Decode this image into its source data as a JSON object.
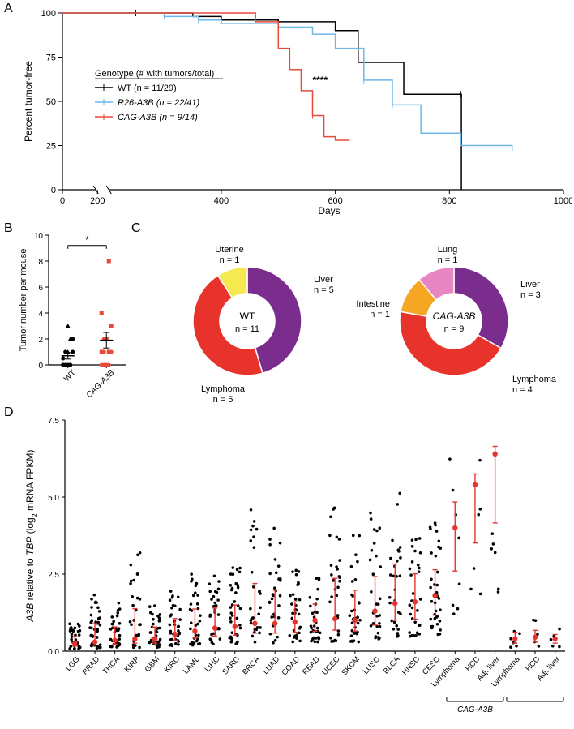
{
  "labels": {
    "A": "A",
    "B": "B",
    "C": "C",
    "D": "D"
  },
  "panelA": {
    "y_title": "Percent tumor-free",
    "x_title": "Days",
    "legend_header": "Genotype (# with tumors/total)",
    "series": [
      {
        "name": "WT",
        "label": "WT (n = 11/29)",
        "color": "#000000",
        "pts": [
          [
            0,
            100
          ],
          [
            250,
            100
          ],
          [
            300,
            100
          ],
          [
            350,
            98
          ],
          [
            400,
            96
          ],
          [
            500,
            95
          ],
          [
            600,
            90
          ],
          [
            640,
            72
          ],
          [
            700,
            72
          ],
          [
            720,
            54
          ],
          [
            820,
            54
          ],
          [
            821,
            0
          ]
        ]
      },
      {
        "name": "R26-A3B",
        "label": "R26-A3B (n = 22/41)",
        "color": "#6bb7e8",
        "italic": true,
        "pts": [
          [
            0,
            100
          ],
          [
            250,
            100
          ],
          [
            300,
            98
          ],
          [
            360,
            96
          ],
          [
            400,
            94
          ],
          [
            500,
            92
          ],
          [
            560,
            88
          ],
          [
            600,
            80
          ],
          [
            650,
            62
          ],
          [
            700,
            48
          ],
          [
            750,
            32
          ],
          [
            820,
            25
          ],
          [
            910,
            22
          ]
        ]
      },
      {
        "name": "CAG-A3B",
        "label": "CAG-A3B (n = 9/14)",
        "color": "#e84a3a",
        "italic": true,
        "pts": [
          [
            0,
            100
          ],
          [
            250,
            100
          ],
          [
            460,
            95
          ],
          [
            500,
            80
          ],
          [
            520,
            68
          ],
          [
            540,
            56
          ],
          [
            560,
            42
          ],
          [
            580,
            30
          ],
          [
            600,
            28
          ],
          [
            625,
            28
          ]
        ]
      }
    ],
    "signif": "****",
    "xticks": [
      0,
      200,
      400,
      600,
      800,
      1000
    ],
    "yticks": [
      0,
      25,
      50,
      75,
      100
    ]
  },
  "panelB": {
    "y_title": "Tumor number per mouse",
    "categories": [
      "WT",
      "CAG-A3B"
    ],
    "signif": "*",
    "ymax": 10,
    "ytick_step": 2,
    "group_means": [
      0.7,
      1.9
    ],
    "group_sems": [
      0.25,
      0.6
    ],
    "points": {
      "WT": [
        {
          "y": 0.5,
          "s": "c"
        },
        {
          "y": 1,
          "s": "c"
        },
        {
          "y": 0,
          "s": "c"
        },
        {
          "y": 2,
          "s": "t"
        },
        {
          "y": 1,
          "s": "c"
        },
        {
          "y": 0,
          "s": "c"
        },
        {
          "y": 0,
          "s": "c"
        },
        {
          "y": 1,
          "s": "t"
        },
        {
          "y": 0,
          "s": "c"
        },
        {
          "y": 2,
          "s": "c"
        },
        {
          "y": 0,
          "s": "c"
        },
        {
          "y": 1,
          "s": "c"
        },
        {
          "y": 3,
          "s": "t"
        },
        {
          "y": 0,
          "s": "c"
        }
      ],
      "CAG-A3B": [
        {
          "y": 1,
          "s": "s"
        },
        {
          "y": 0,
          "s": "c"
        },
        {
          "y": 2,
          "s": "s"
        },
        {
          "y": 8,
          "s": "s"
        },
        {
          "y": 1,
          "s": "c"
        },
        {
          "y": 4,
          "s": "s"
        },
        {
          "y": 2,
          "s": "c"
        },
        {
          "y": 0,
          "s": "c"
        },
        {
          "y": 1,
          "s": "s"
        },
        {
          "y": 3,
          "s": "s"
        },
        {
          "y": 0,
          "s": "c"
        },
        {
          "y": 1,
          "s": "c"
        },
        {
          "y": 2,
          "s": "s"
        },
        {
          "y": 0,
          "s": "c"
        }
      ]
    },
    "colors": {
      "WT": "#000000",
      "CAG-A3B": "#e84a3a"
    }
  },
  "panelC": {
    "pies": [
      {
        "center": "WT",
        "n": "n = 11",
        "italic": false,
        "slices": [
          {
            "label": "Liver",
            "sub": "n = 5",
            "frac": 0.4545,
            "color": "#7b2d8e"
          },
          {
            "label": "Lymphoma",
            "sub": "n = 5",
            "frac": 0.4545,
            "color": "#e8332c"
          },
          {
            "label": "Uterine",
            "sub": "n = 1",
            "frac": 0.091,
            "color": "#f5e94f"
          }
        ]
      },
      {
        "center": "CAG-A3B",
        "n": "n = 9",
        "italic": true,
        "slices": [
          {
            "label": "Liver",
            "sub": "n = 3",
            "frac": 0.3333,
            "color": "#7b2d8e"
          },
          {
            "label": "Lymphoma",
            "sub": "n = 4",
            "frac": 0.4444,
            "color": "#e8332c"
          },
          {
            "label": "Intestine",
            "sub": "n = 1",
            "frac": 0.1111,
            "color": "#f5a623"
          },
          {
            "label": "Lung",
            "sub": "n = 1",
            "frac": 0.1111,
            "color": "#e886c4"
          }
        ]
      }
    ]
  },
  "panelD": {
    "y_title_plain_pre": "A3B",
    "y_title_plain_mid": " relative to ",
    "y_title_plain_tbp": "TBP",
    "y_title_plain_post": " (log",
    "y_title_sub": "2",
    "y_title_plain_end": " mRNA FPKM)",
    "ymax": 7.5,
    "ytick_step": 2.5,
    "median_color": "#e8332c",
    "categories": [
      {
        "l": "LGG",
        "m": 0.25,
        "h": 0.9
      },
      {
        "l": "PRAD",
        "m": 0.3,
        "h": 2.0
      },
      {
        "l": "THCA",
        "m": 0.35,
        "h": 1.6
      },
      {
        "l": "KIRP",
        "m": 0.4,
        "h": 3.2
      },
      {
        "l": "GBM",
        "m": 0.4,
        "h": 1.5
      },
      {
        "l": "KIRC",
        "m": 0.55,
        "h": 2.0
      },
      {
        "l": "LAML",
        "m": 0.65,
        "h": 2.7
      },
      {
        "l": "LIHC",
        "m": 0.75,
        "h": 2.6
      },
      {
        "l": "SARC",
        "m": 0.8,
        "h": 2.8
      },
      {
        "l": "BRCA",
        "m": 0.9,
        "h": 4.6
      },
      {
        "l": "LUAD",
        "m": 0.9,
        "h": 4.0
      },
      {
        "l": "COAD",
        "m": 0.95,
        "h": 2.8
      },
      {
        "l": "READ",
        "m": 1.0,
        "h": 2.5
      },
      {
        "l": "UCEC",
        "m": 1.05,
        "h": 4.8
      },
      {
        "l": "SKCM",
        "m": 1.0,
        "h": 3.8
      },
      {
        "l": "LUSC",
        "m": 1.3,
        "h": 4.5
      },
      {
        "l": "BLCA",
        "m": 1.55,
        "h": 5.2
      },
      {
        "l": "HNSC",
        "m": 1.6,
        "h": 4.2
      },
      {
        "l": "CESC",
        "m": 1.8,
        "h": 4.2
      },
      {
        "l": "Lymphoma",
        "m": 4.0,
        "h": 6.4,
        "n": 8,
        "grp": "CAG-A3B"
      },
      {
        "l": "HCC",
        "m": 5.4,
        "h": 6.4,
        "n": 6,
        "grp": "CAG-A3B"
      },
      {
        "l": "Adj. liver",
        "m": 6.4,
        "h": 7.1,
        "n": 6,
        "grp": "CAG-A3B"
      },
      {
        "l": "Lymphoma",
        "m": 0.4,
        "h": 1.0,
        "n": 6,
        "grp": "WT-like"
      },
      {
        "l": "HCC",
        "m": 0.45,
        "h": 1.1,
        "n": 6,
        "grp": "WT-like"
      },
      {
        "l": "Adj. liver",
        "m": 0.4,
        "h": 0.8,
        "n": 5,
        "grp": "WT-like"
      }
    ],
    "group_label": "CAG-A3B"
  },
  "colors": {
    "axis": "#000000",
    "text": "#000000",
    "bg": "#ffffff"
  },
  "fonts": {
    "label": 16,
    "axis": 11,
    "small": 10
  }
}
